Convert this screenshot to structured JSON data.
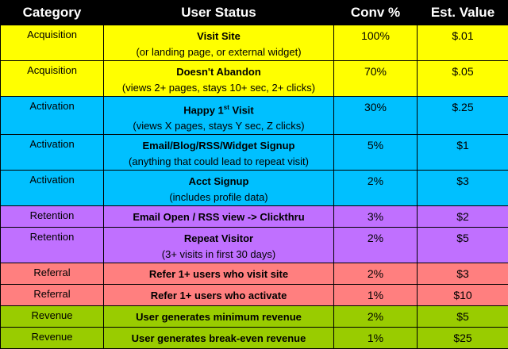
{
  "headers": {
    "category": "Category",
    "status": "User Status",
    "conv": "Conv %",
    "value": "Est. Value"
  },
  "rows": [
    {
      "category": "Acquisition",
      "title": "Visit Site",
      "sub": "(or landing page, or external widget)",
      "conv": "100%",
      "value": "$.01"
    },
    {
      "category": "Acquisition",
      "title": "Doesn't Abandon",
      "sub": "(views 2+ pages, stays 10+ sec, 2+ clicks)",
      "conv": "70%",
      "value": "$.05"
    },
    {
      "category": "Activation",
      "title": "Happy 1",
      "title_sup": "st",
      "title_tail": " Visit",
      "sub": "(views X pages, stays Y sec, Z clicks)",
      "conv": "30%",
      "value": "$.25"
    },
    {
      "category": "Activation",
      "title": "Email/Blog/RSS/Widget Signup",
      "sub": "(anything that could lead to repeat visit)",
      "conv": "5%",
      "value": "$1"
    },
    {
      "category": "Activation",
      "title": "Acct Signup",
      "sub": "(includes profile data)",
      "conv": "2%",
      "value": "$3"
    },
    {
      "category": "Retention",
      "title": "Email Open / RSS view -> Clickthru",
      "sub": "",
      "conv": "3%",
      "value": "$2"
    },
    {
      "category": "Retention",
      "title": "Repeat Visitor",
      "sub": "(3+ visits in first 30 days)",
      "conv": "2%",
      "value": "$5"
    },
    {
      "category": "Referral",
      "title": "Refer 1+ users who visit site",
      "sub": "",
      "conv": "2%",
      "value": "$3"
    },
    {
      "category": "Referral",
      "title": "Refer 1+ users who activate",
      "sub": "",
      "conv": "1%",
      "value": "$10"
    },
    {
      "category": "Revenue",
      "title": "User generates minimum revenue",
      "sub": "",
      "conv": "2%",
      "value": "$5"
    },
    {
      "category": "Revenue",
      "title": "User generates break-even revenue",
      "sub": "",
      "conv": "1%",
      "value": "$25"
    }
  ],
  "colors": {
    "Acquisition": "#ffff00",
    "Activation": "#00c0ff",
    "Retention": "#c070ff",
    "Referral": "#ff7f7f",
    "Revenue": "#99cc00"
  }
}
